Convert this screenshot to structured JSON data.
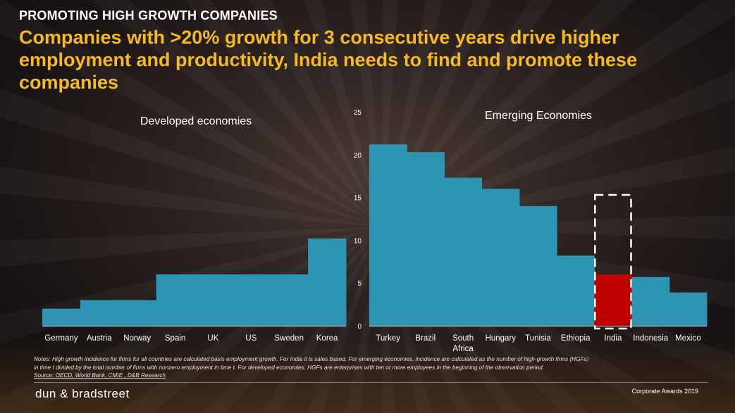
{
  "header": {
    "kicker": "PROMOTING HIGH GROWTH COMPANIES",
    "headline": "Companies with >20% growth for 3 consecutive years drive higher employment and productivity, India needs to find and promote these companies"
  },
  "colors": {
    "bar": "#2e94b4",
    "highlight": "#c00000",
    "headline": "#f5b923"
  },
  "chart_data": [
    {
      "type": "bar",
      "title": "Developed economies",
      "categories": [
        "Germany",
        "Austria",
        "Norway",
        "Spain",
        "UK",
        "US",
        "Sweden",
        "Korea"
      ],
      "values": [
        2.0,
        3.0,
        3.0,
        6.0,
        6.0,
        6.0,
        6.0,
        10.2
      ],
      "ylim": [
        0,
        25
      ]
    },
    {
      "type": "bar",
      "title": "Emerging Economies",
      "categories": [
        "Turkey",
        "Brazil",
        "South Africa",
        "Hungary",
        "Tunisia",
        "Ethiopia",
        "India",
        "Indonesia",
        "Mexico"
      ],
      "values": [
        21.2,
        20.3,
        17.3,
        16.0,
        14.0,
        8.2,
        6.0,
        5.7,
        3.9
      ],
      "highlight": "India",
      "ylim": [
        0,
        25
      ],
      "yticks": [
        "0",
        "5",
        "10",
        "15",
        "20",
        "25"
      ]
    }
  ],
  "notes": [
    "Notes: High growth incidence for firms for all countries are calculated basis employment growth. For India it is sales based. For emerging economies, incidence are calculated as the number of high-growth firms (HGFs)",
    "in time t divided by the total number of firms with nonzero employment in time t. For developed economies, HGFs are enterprises with ten or more employees in the beginning of the observation period.",
    "Source: OECD, World Bank, CMIE , D&B Research"
  ],
  "footer": {
    "logo": "dun & bradstreet",
    "event": "Corporate Awards 2019"
  }
}
